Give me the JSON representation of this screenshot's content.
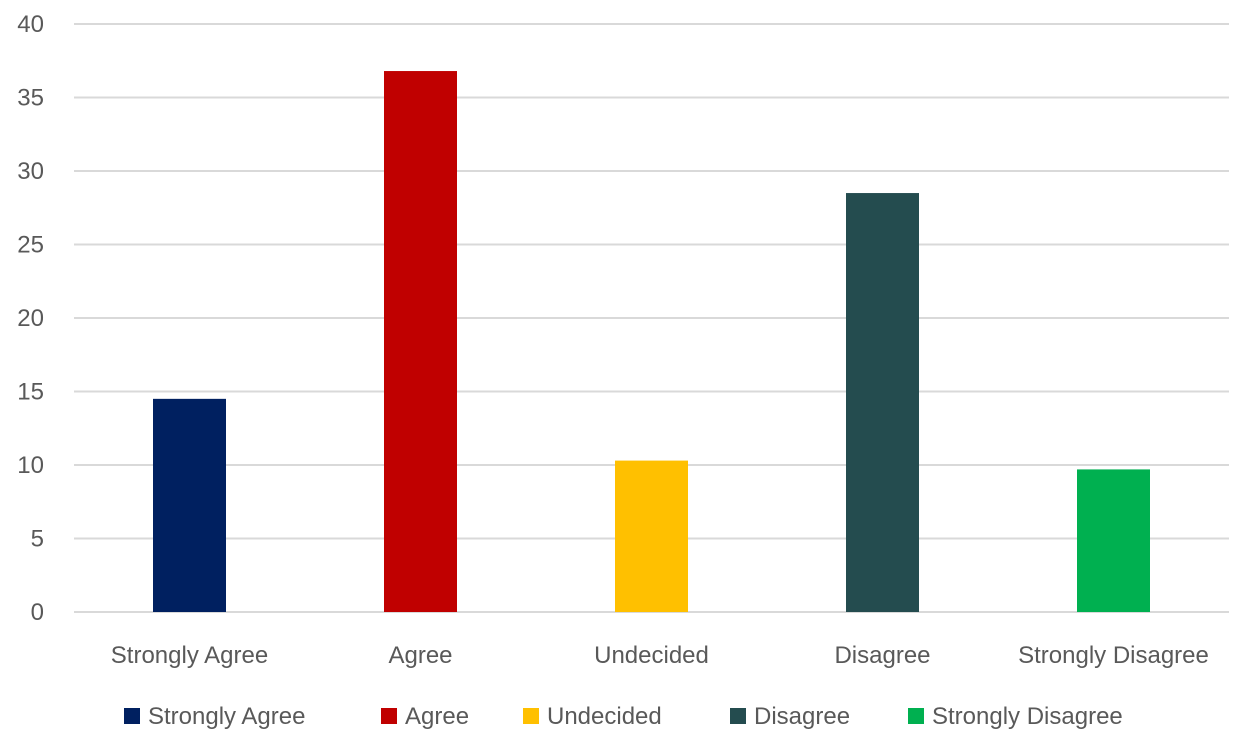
{
  "chart_data": {
    "type": "bar",
    "title": "",
    "xlabel": "",
    "ylabel": "",
    "categories": [
      "Strongly Agree",
      "Agree",
      "Undecided",
      "Disagree",
      "Strongly Disagree"
    ],
    "values": [
      14.5,
      36.8,
      10.3,
      28.5,
      9.7
    ],
    "colors": [
      "#002060",
      "#C00000",
      "#FFC000",
      "#244C4F",
      "#00B050"
    ],
    "ylim": [
      0,
      40
    ],
    "yticks": [
      0,
      5,
      10,
      15,
      20,
      25,
      30,
      35,
      40
    ],
    "grid": true,
    "legend": {
      "position": "bottom",
      "entries": [
        "Strongly Agree",
        "Agree",
        "Undecided",
        "Disagree",
        "Strongly Disagree"
      ]
    }
  }
}
